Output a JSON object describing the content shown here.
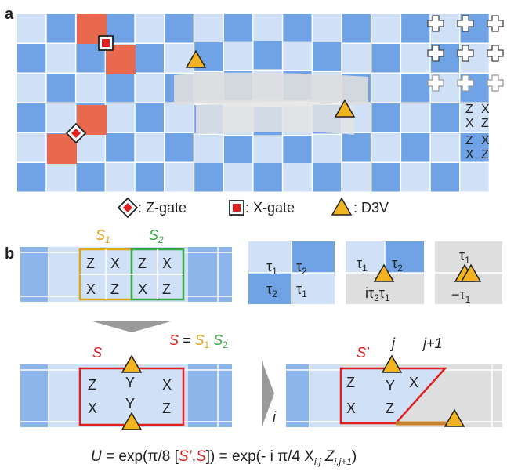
{
  "panel_a": {
    "label": "a",
    "stabilizer_labels": [
      [
        "Z",
        "X"
      ],
      [
        "X",
        "Z"
      ],
      [
        "Z",
        "X"
      ],
      [
        "X",
        "Z"
      ]
    ],
    "legend": {
      "z_gate": ": Z-gate",
      "x_gate": ": X-gate",
      "d3v": ": D3V"
    }
  },
  "panel_b": {
    "label": "b",
    "s1": "S",
    "s1_sub": "1",
    "s2": "S",
    "s2_sub": "2",
    "s1_cells": [
      "Z",
      "X",
      "X",
      "Z"
    ],
    "s2_cells": [
      "Z",
      "X",
      "X",
      "Z"
    ],
    "eq_s": "S",
    "eq_equals": " = ",
    "eq_s1": "S",
    "eq_s1_sub": "1",
    "eq_s2": "S",
    "eq_s2_sub": "2",
    "tau": {
      "t1": "τ",
      "sub1": "1",
      "sub2": "2",
      "itau": "iτ",
      "neg": "−τ"
    },
    "merged_label": "S",
    "merged_cells": {
      "left_top": "Z",
      "left_bot": "X",
      "mid_top": "Y",
      "mid_bot": "Y",
      "right_top": "X",
      "right_bot": "Z"
    },
    "prime_label": "S’",
    "prime_cells": {
      "left_top": "Z",
      "left_bot": "X",
      "mid_top": "Y",
      "mid_bot": "Z",
      "right_top": "X"
    },
    "j": "j",
    "jp1": "j+1",
    "i": "i"
  },
  "formula": {
    "U": "U",
    "part1": " = exp(π/8 [",
    "sprime": "S’",
    "comma": ",",
    "s": "S",
    "part2": "]) = exp(- i π/4 X",
    "xsub": "i,j",
    "z": " Z",
    "zsub": "i,j+1",
    "close": ")"
  },
  "colors": {
    "light_blue": "#cfe0f7",
    "mid_blue": "#6fa3e6",
    "orange_red": "#e8694e",
    "gray": "#dcdcdc",
    "triangle": "#f2b320",
    "red": "#e02020",
    "gold": "#e0a512",
    "green": "#36a844"
  }
}
